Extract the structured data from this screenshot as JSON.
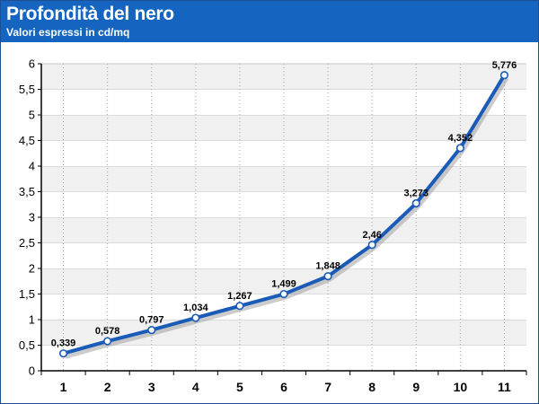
{
  "header": {
    "title": "Profondità del nero",
    "subtitle": "Valori espressi in cd/mq"
  },
  "colors": {
    "header_bg": "#1565c0",
    "line": "#1a5bb8",
    "band": "#f0f0f0"
  },
  "chart_data": {
    "type": "line",
    "title": "Profondità del nero",
    "subtitle": "Valori espressi in cd/mq",
    "xlabel": "",
    "ylabel": "",
    "x": [
      "1",
      "2",
      "3",
      "4",
      "5",
      "6",
      "7",
      "8",
      "9",
      "10",
      "11"
    ],
    "values": [
      0.339,
      0.578,
      0.797,
      1.034,
      1.267,
      1.499,
      1.848,
      2.46,
      3.273,
      4.352,
      5.776
    ],
    "data_labels": [
      "0,339",
      "0,578",
      "0,797",
      "1,034",
      "1,267",
      "1,499",
      "1,848",
      "2,46",
      "3,273",
      "4,352",
      "5,776"
    ],
    "yticks": [
      "0",
      "0,5",
      "1",
      "1,5",
      "2",
      "2,5",
      "3",
      "3,5",
      "4",
      "4,5",
      "5",
      "5,5",
      "6"
    ],
    "ylim": [
      0,
      6
    ],
    "grid": true,
    "legend": "none"
  }
}
